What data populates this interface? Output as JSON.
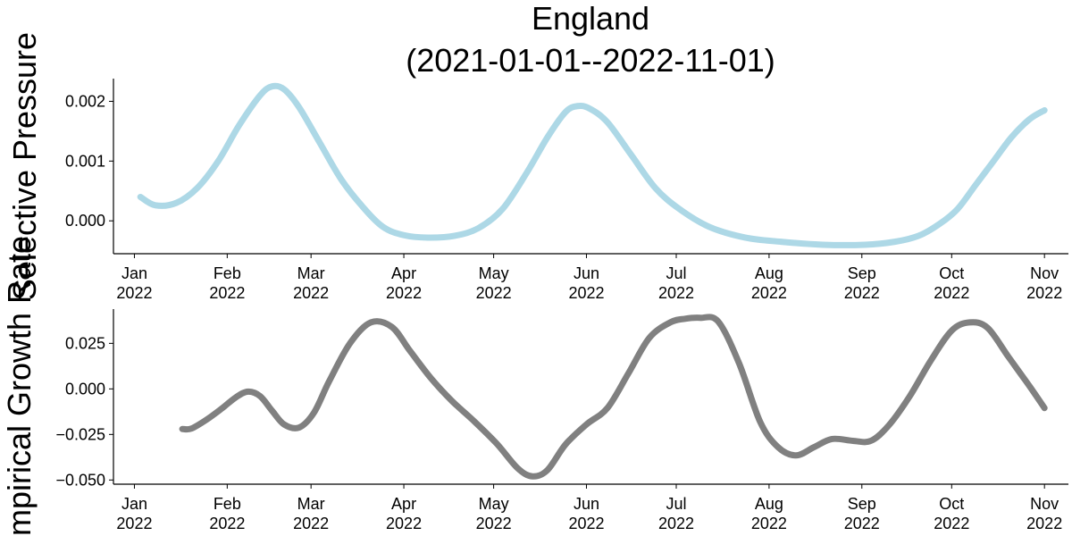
{
  "title_line1": "England",
  "title_line2": "(2021-01-01--2022-11-01)",
  "chart_data": [
    {
      "type": "line",
      "ylabel": "Selective Pressure",
      "ylim": [
        -0.00055,
        0.00238
      ],
      "yticks": [
        0.0,
        0.001,
        0.002
      ],
      "ytick_labels": [
        "0.000",
        "0.001",
        "0.002"
      ],
      "xlim": [
        "2021-12-25",
        "2022-11-09"
      ],
      "xticks": [
        "2022-01-01",
        "2022-02-01",
        "2022-03-01",
        "2022-04-01",
        "2022-05-01",
        "2022-06-01",
        "2022-07-01",
        "2022-08-01",
        "2022-09-01",
        "2022-10-01",
        "2022-11-01"
      ],
      "xtick_labels": [
        [
          "Jan",
          "2022"
        ],
        [
          "Feb",
          "2022"
        ],
        [
          "Mar",
          "2022"
        ],
        [
          "Apr",
          "2022"
        ],
        [
          "May",
          "2022"
        ],
        [
          "Jun",
          "2022"
        ],
        [
          "Jul",
          "2022"
        ],
        [
          "Aug",
          "2022"
        ],
        [
          "Sep",
          "2022"
        ],
        [
          "Oct",
          "2022"
        ],
        [
          "Nov",
          "2022"
        ]
      ],
      "grid": false,
      "series": [
        {
          "color": "#add8e6",
          "x": [
            "2022-01-03",
            "2022-01-08",
            "2022-01-15",
            "2022-01-22",
            "2022-01-29",
            "2022-02-05",
            "2022-02-12",
            "2022-02-16",
            "2022-02-20",
            "2022-02-25",
            "2022-03-04",
            "2022-03-11",
            "2022-03-18",
            "2022-03-25",
            "2022-04-01",
            "2022-04-09",
            "2022-04-18",
            "2022-04-26",
            "2022-05-04",
            "2022-05-12",
            "2022-05-19",
            "2022-05-25",
            "2022-05-29",
            "2022-06-02",
            "2022-06-08",
            "2022-06-16",
            "2022-06-24",
            "2022-07-02",
            "2022-07-12",
            "2022-07-24",
            "2022-08-05",
            "2022-08-19",
            "2022-09-02",
            "2022-09-12",
            "2022-09-20",
            "2022-09-27",
            "2022-10-03",
            "2022-10-09",
            "2022-10-15",
            "2022-10-21",
            "2022-10-27",
            "2022-11-01"
          ],
          "y": [
            0.0004,
            0.00026,
            0.0003,
            0.00055,
            0.001,
            0.0016,
            0.0021,
            0.00225,
            0.0022,
            0.0019,
            0.0013,
            0.0007,
            0.00025,
            -0.0001,
            -0.00024,
            -0.00028,
            -0.00025,
            -0.00012,
            0.0002,
            0.0008,
            0.0014,
            0.00182,
            0.00192,
            0.00188,
            0.00165,
            0.0011,
            0.00055,
            0.0002,
            -0.0001,
            -0.00028,
            -0.00035,
            -0.0004,
            -0.0004,
            -0.00035,
            -0.00025,
            -5e-05,
            0.0002,
            0.0006,
            0.001,
            0.0014,
            0.0017,
            0.00185
          ]
        }
      ]
    },
    {
      "type": "line",
      "ylabel": "Empirical Growth Rate",
      "ylim": [
        -0.0523,
        0.0438
      ],
      "yticks": [
        -0.05,
        -0.025,
        0.0,
        0.025
      ],
      "ytick_labels": [
        "−0.050",
        "−0.025",
        "0.000",
        "0.025"
      ],
      "xlim": [
        "2021-12-25",
        "2022-11-09"
      ],
      "xticks": [
        "2022-01-01",
        "2022-02-01",
        "2022-03-01",
        "2022-04-01",
        "2022-05-01",
        "2022-06-01",
        "2022-07-01",
        "2022-08-01",
        "2022-09-01",
        "2022-10-01",
        "2022-11-01"
      ],
      "xtick_labels": [
        [
          "Jan",
          "2022"
        ],
        [
          "Feb",
          "2022"
        ],
        [
          "Mar",
          "2022"
        ],
        [
          "Apr",
          "2022"
        ],
        [
          "May",
          "2022"
        ],
        [
          "Jun",
          "2022"
        ],
        [
          "Jul",
          "2022"
        ],
        [
          "Aug",
          "2022"
        ],
        [
          "Sep",
          "2022"
        ],
        [
          "Oct",
          "2022"
        ],
        [
          "Nov",
          "2022"
        ]
      ],
      "grid": false,
      "series": [
        {
          "color": "#808080",
          "x": [
            "2022-01-17",
            "2022-01-20",
            "2022-01-25",
            "2022-01-30",
            "2022-02-04",
            "2022-02-08",
            "2022-02-12",
            "2022-02-16",
            "2022-02-20",
            "2022-02-25",
            "2022-03-02",
            "2022-03-07",
            "2022-03-14",
            "2022-03-21",
            "2022-03-28",
            "2022-04-03",
            "2022-04-10",
            "2022-04-17",
            "2022-04-24",
            "2022-05-02",
            "2022-05-09",
            "2022-05-14",
            "2022-05-19",
            "2022-05-25",
            "2022-06-01",
            "2022-06-08",
            "2022-06-15",
            "2022-06-22",
            "2022-06-29",
            "2022-07-04",
            "2022-07-09",
            "2022-07-15",
            "2022-07-22",
            "2022-07-29",
            "2022-08-04",
            "2022-08-10",
            "2022-08-16",
            "2022-08-22",
            "2022-08-29",
            "2022-09-04",
            "2022-09-10",
            "2022-09-17",
            "2022-09-24",
            "2022-10-01",
            "2022-10-07",
            "2022-10-13",
            "2022-10-20",
            "2022-10-27",
            "2022-11-01"
          ],
          "y": [
            -0.022,
            -0.0218,
            -0.017,
            -0.011,
            -0.0045,
            -0.0015,
            -0.004,
            -0.012,
            -0.0195,
            -0.0212,
            -0.013,
            0.004,
            0.025,
            0.0365,
            0.034,
            0.021,
            0.006,
            -0.0065,
            -0.017,
            -0.03,
            -0.0435,
            -0.048,
            -0.0445,
            -0.0305,
            -0.0195,
            -0.0105,
            0.0085,
            0.028,
            0.0365,
            0.0385,
            0.039,
            0.037,
            0.014,
            -0.018,
            -0.032,
            -0.0365,
            -0.032,
            -0.0275,
            -0.0285,
            -0.0285,
            -0.02,
            -0.004,
            0.0155,
            0.032,
            0.0365,
            0.0335,
            0.0175,
            0.0015,
            -0.0105
          ]
        }
      ]
    }
  ]
}
